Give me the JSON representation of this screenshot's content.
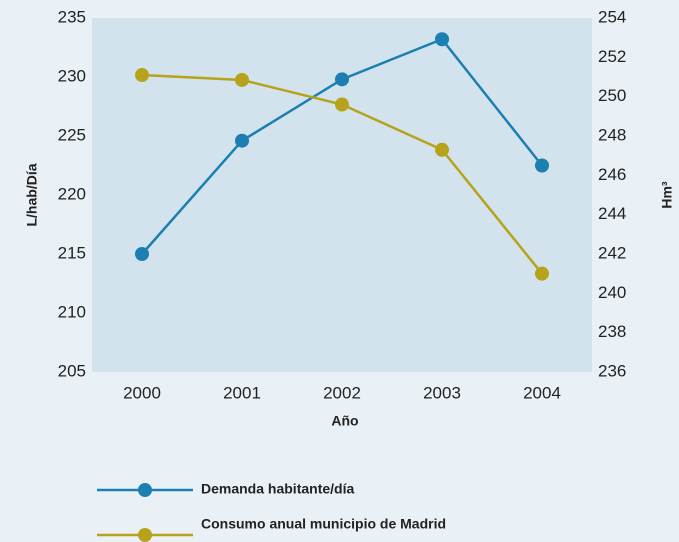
{
  "chart_data": {
    "type": "line",
    "x_label": "Año",
    "y_label": "L/hab/Día",
    "y2_label": "Hm³",
    "categories": [
      "2000",
      "2001",
      "2002",
      "2003",
      "2004"
    ],
    "series": [
      {
        "name": "Demanda habitante/día",
        "color": "#1b7fb1",
        "values": [
          215,
          224.6,
          229.8,
          233.2,
          222.5
        ]
      },
      {
        "name": "Consumo anual municipio de Madrid",
        "color": "#b6a31b",
        "axis": "y2",
        "values": [
          251.1,
          250.85,
          249.6,
          247.3,
          241
        ]
      }
    ],
    "ylim": [
      205,
      235
    ],
    "yticks": [
      205,
      210,
      215,
      220,
      225,
      230,
      235
    ],
    "y2lim": [
      236,
      254
    ],
    "y2ticks": [
      236,
      238,
      240,
      242,
      244,
      246,
      248,
      250,
      252,
      254
    ],
    "grid": false
  }
}
